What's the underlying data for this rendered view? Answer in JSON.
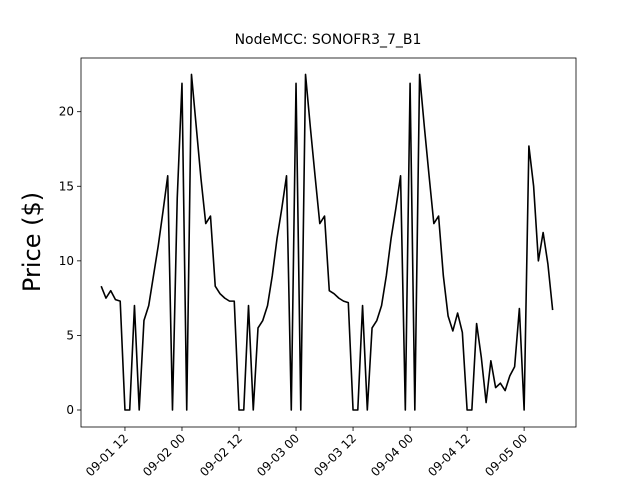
{
  "chart_data": {
    "type": "line",
    "title": "NodeMCC: SONOFR3_7_B1",
    "ylabel": "Price ($)",
    "x": [
      "09-01 07",
      "09-01 08",
      "09-01 09",
      "09-01 10",
      "09-01 11",
      "09-01 12",
      "09-01 13",
      "09-01 14",
      "09-01 15",
      "09-01 16",
      "09-01 17",
      "09-01 18",
      "09-01 19",
      "09-01 20",
      "09-01 21",
      "09-01 22",
      "09-01 23",
      "09-02 00",
      "09-02 01",
      "09-02 02",
      "09-02 03",
      "09-02 04",
      "09-02 05",
      "09-02 06",
      "09-02 07",
      "09-02 08",
      "09-02 09",
      "09-02 10",
      "09-02 11",
      "09-02 12",
      "09-02 13",
      "09-02 14",
      "09-02 15",
      "09-02 16",
      "09-02 17",
      "09-02 18",
      "09-02 19",
      "09-02 20",
      "09-02 21",
      "09-02 22",
      "09-02 23",
      "09-03 00",
      "09-03 01",
      "09-03 02",
      "09-03 03",
      "09-03 04",
      "09-03 05",
      "09-03 06",
      "09-03 07",
      "09-03 08",
      "09-03 09",
      "09-03 10",
      "09-03 11",
      "09-03 12",
      "09-03 13",
      "09-03 14",
      "09-03 15",
      "09-03 16",
      "09-03 17",
      "09-03 18",
      "09-03 19",
      "09-03 20",
      "09-03 21",
      "09-03 22",
      "09-03 23",
      "09-04 00",
      "09-04 01",
      "09-04 02",
      "09-04 03",
      "09-04 04",
      "09-04 05",
      "09-04 06",
      "09-04 07",
      "09-04 08",
      "09-04 09",
      "09-04 10",
      "09-04 11",
      "09-04 12",
      "09-04 13",
      "09-04 14",
      "09-04 15",
      "09-04 16",
      "09-04 17",
      "09-04 18",
      "09-04 19",
      "09-04 20",
      "09-04 21",
      "09-04 22",
      "09-04 23",
      "09-05 00",
      "09-05 01",
      "09-05 02",
      "09-05 03",
      "09-05 04",
      "09-05 05",
      "09-05 06"
    ],
    "series": [
      {
        "color": "#000000",
        "values": [
          8.3,
          7.5,
          8,
          7.4,
          7.3,
          0,
          0,
          7,
          0,
          6,
          7,
          9,
          11,
          13.3,
          15.7,
          0,
          14.2,
          21.9,
          0,
          22.5,
          19,
          15.5,
          12.5,
          13,
          8.3,
          7.8,
          7.5,
          7.3,
          7.3,
          0,
          0,
          7,
          0,
          5.5,
          6,
          7,
          9,
          11.5,
          13.5,
          15.7,
          0,
          21.9,
          0,
          22.5,
          19,
          15.7,
          12.5,
          13,
          8,
          7.8,
          7.5,
          7.3,
          7.2,
          0,
          0,
          7,
          0,
          5.5,
          6,
          7,
          9,
          11.5,
          13.5,
          15.7,
          0,
          21.9,
          0,
          22.5,
          19,
          15.7,
          12.5,
          13,
          9,
          6.3,
          5.3,
          6.5,
          5.2,
          0,
          0,
          5.8,
          3.5,
          0.5,
          3.3,
          1.5,
          1.8,
          1.3,
          2.3,
          2.9,
          6.8,
          0,
          17.7,
          15,
          10,
          11.9,
          9.8,
          6.7
        ]
      }
    ],
    "xlim": [
      "09-01 02:45",
      "09-05 10:55"
    ],
    "xticks": [
      "09-01 12",
      "09-02 00",
      "09-02 12",
      "09-03 00",
      "09-03 12",
      "09-04 00",
      "09-04 12",
      "09-05 00"
    ],
    "ylim": [
      -1.14,
      23.6
    ],
    "yticks": [
      0,
      5,
      10,
      15,
      20
    ]
  }
}
